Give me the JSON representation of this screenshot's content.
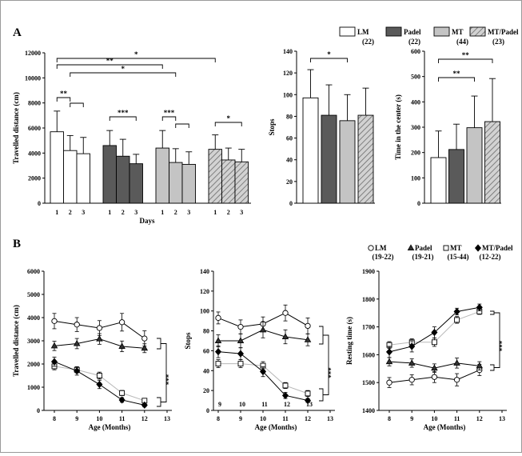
{
  "panels": {
    "a": "A",
    "b": "B"
  },
  "colors": {
    "LM": "#ffffff",
    "Padel": "#5a5a5a",
    "MT": "#c4c4c4",
    "MTPadel": "#d2d2d2"
  },
  "legend_a": [
    {
      "name": "LM",
      "n": "(22)"
    },
    {
      "name": "Padel",
      "n": "(22)"
    },
    {
      "name": "MT",
      "n": "(44)"
    },
    {
      "name": "MT/Padel",
      "n": "(23)"
    }
  ],
  "legend_b": [
    {
      "name": "LM",
      "n": "(19-22)"
    },
    {
      "name": "Padel",
      "n": "(19-21)"
    },
    {
      "name": "MT",
      "n": "(15-44)"
    },
    {
      "name": "MT/Padel",
      "n": "(12-22)"
    }
  ],
  "chart_data": [
    {
      "type": "bar",
      "ylabel": "Travelled distance (cm)",
      "xlabel": "Days",
      "ylim": [
        0,
        12000
      ],
      "yticks": [
        0,
        2000,
        4000,
        6000,
        8000,
        10000,
        12000
      ],
      "ytick_labels": [
        "0",
        "2000",
        "4000",
        "6000",
        "8000",
        "10000",
        "12000"
      ],
      "groups": [
        {
          "series": "LM",
          "days": [
            "1",
            "2",
            "3"
          ],
          "values": [
            5700,
            4200,
            3950
          ],
          "errors": [
            1650,
            1200,
            1300
          ]
        },
        {
          "series": "Padel",
          "days": [
            "1",
            "2",
            "3"
          ],
          "values": [
            4600,
            3750,
            3150
          ],
          "errors": [
            1200,
            1350,
            750
          ]
        },
        {
          "series": "MT",
          "days": [
            "1",
            "2",
            "3"
          ],
          "values": [
            4400,
            3250,
            3100
          ],
          "errors": [
            1400,
            1100,
            1000
          ]
        },
        {
          "series": "MT/Padel",
          "days": [
            "1",
            "2",
            "3"
          ],
          "values": [
            4300,
            3450,
            3300
          ],
          "errors": [
            1150,
            950,
            1000
          ]
        }
      ],
      "significance": [
        {
          "label": "*",
          "from": [
            0,
            0
          ],
          "to": [
            3,
            0
          ]
        },
        {
          "label": "**",
          "from": [
            0,
            0
          ],
          "to": [
            2,
            0
          ]
        },
        {
          "label": "*",
          "from": [
            0,
            1
          ],
          "to": [
            2,
            1
          ]
        },
        {
          "label": "**",
          "from": [
            0,
            0
          ],
          "to": [
            0,
            1
          ]
        },
        {
          "label": "",
          "from": [
            0,
            1
          ],
          "to": [
            0,
            2
          ]
        },
        {
          "label": "***",
          "from": [
            1,
            0
          ],
          "to": [
            1,
            2
          ]
        },
        {
          "label": "***",
          "from": [
            2,
            0
          ],
          "to": [
            2,
            1
          ]
        },
        {
          "label": "",
          "from": [
            2,
            1
          ],
          "to": [
            2,
            2
          ]
        },
        {
          "label": "*",
          "from": [
            3,
            0
          ],
          "to": [
            3,
            2
          ]
        }
      ]
    },
    {
      "type": "bar",
      "ylabel": "Stops",
      "ylim": [
        0,
        140
      ],
      "yticks": [
        0,
        20,
        40,
        60,
        80,
        100,
        120,
        140
      ],
      "categories": [
        "LM",
        "Padel",
        "MT",
        "MT/Padel"
      ],
      "values": [
        97,
        81,
        76,
        81
      ],
      "errors": [
        26,
        28,
        24,
        25
      ],
      "significance": [
        {
          "label": "*",
          "from": 0,
          "to": 2
        }
      ]
    },
    {
      "type": "bar",
      "ylabel": "Time in the center (s)",
      "ylim": [
        0,
        600
      ],
      "yticks": [
        0,
        100,
        200,
        300,
        400,
        500,
        600
      ],
      "categories": [
        "LM",
        "Padel",
        "MT",
        "MT/Padel"
      ],
      "values": [
        180,
        212,
        298,
        322
      ],
      "errors": [
        105,
        100,
        125,
        170
      ],
      "significance": [
        {
          "label": "**",
          "from": 0,
          "to": 3
        },
        {
          "label": "**",
          "from": 0,
          "to": 2
        }
      ]
    },
    {
      "type": "line",
      "ylabel": "Travelled distance (cm)",
      "xlabel": "Age (Months)",
      "xlim": [
        7.5,
        13.3
      ],
      "xticks": [
        8,
        9,
        10,
        11,
        12,
        13
      ],
      "ylim": [
        0,
        6000
      ],
      "yticks": [
        0,
        1000,
        2000,
        3000,
        4000,
        5000,
        6000
      ],
      "x": [
        8,
        9,
        10,
        11,
        12
      ],
      "series": [
        {
          "name": "LM",
          "values": [
            3850,
            3700,
            3550,
            3800,
            3100
          ],
          "errors": [
            330,
            300,
            320,
            380,
            330
          ]
        },
        {
          "name": "Padel",
          "values": [
            2780,
            2880,
            3080,
            2760,
            2680
          ],
          "errors": [
            200,
            220,
            230,
            230,
            190
          ]
        },
        {
          "name": "MT",
          "values": [
            1900,
            1750,
            1500,
            750,
            420
          ],
          "errors": [
            150,
            130,
            150,
            110,
            100
          ]
        },
        {
          "name": "MT/Padel",
          "values": [
            2100,
            1700,
            1120,
            450,
            230
          ],
          "errors": [
            200,
            180,
            180,
            100,
            80
          ]
        }
      ],
      "significance": [
        {
          "label": "***"
        }
      ]
    },
    {
      "type": "line",
      "ylabel": "Stops",
      "xlabel": "Age (Months)",
      "xlim": [
        7.5,
        13.3
      ],
      "xticks": [
        8,
        9,
        10,
        11,
        12,
        13
      ],
      "ylim": [
        0,
        140
      ],
      "yticks": [
        0,
        20,
        40,
        60,
        80,
        100,
        120,
        140
      ],
      "x": [
        8,
        9,
        10,
        11,
        12
      ],
      "series": [
        {
          "name": "LM",
          "values": [
            93,
            84,
            87,
            98,
            85
          ],
          "errors": [
            6,
            7,
            7,
            8,
            8
          ]
        },
        {
          "name": "Padel",
          "values": [
            70,
            70,
            81,
            74,
            71
          ],
          "errors": [
            6,
            7,
            8,
            7,
            6
          ]
        },
        {
          "name": "MT",
          "values": [
            47,
            47,
            45,
            25,
            17
          ],
          "errors": [
            4,
            4,
            4,
            3,
            3
          ]
        },
        {
          "name": "MT/Padel",
          "values": [
            59,
            57,
            39,
            15,
            10
          ],
          "errors": [
            6,
            6,
            5,
            3,
            2
          ]
        }
      ],
      "annotations": [
        "9",
        "10",
        "11",
        "12",
        "13"
      ],
      "significance": [
        {
          "label": "***"
        }
      ]
    },
    {
      "type": "line",
      "ylabel": "Resting time (s)",
      "xlabel": "Age (Months)",
      "xlim": [
        7.5,
        13.3
      ],
      "xticks": [
        8,
        9,
        10,
        11,
        12,
        13
      ],
      "ylim": [
        1400,
        1900
      ],
      "yticks": [
        1400,
        1500,
        1600,
        1700,
        1800,
        1900
      ],
      "x": [
        8,
        9,
        10,
        11,
        12
      ],
      "series": [
        {
          "name": "LM",
          "values": [
            1500,
            1510,
            1520,
            1510,
            1545
          ],
          "errors": [
            18,
            18,
            20,
            22,
            20
          ]
        },
        {
          "name": "Padel",
          "values": [
            1575,
            1570,
            1552,
            1570,
            1560
          ],
          "errors": [
            15,
            15,
            15,
            18,
            15
          ]
        },
        {
          "name": "MT",
          "values": [
            1635,
            1645,
            1645,
            1725,
            1755
          ],
          "errors": [
            12,
            12,
            15,
            12,
            10
          ]
        },
        {
          "name": "MT/Padel",
          "values": [
            1610,
            1630,
            1680,
            1755,
            1770
          ],
          "errors": [
            20,
            20,
            20,
            12,
            12
          ]
        }
      ],
      "significance": [
        {
          "label": "***"
        }
      ]
    }
  ]
}
